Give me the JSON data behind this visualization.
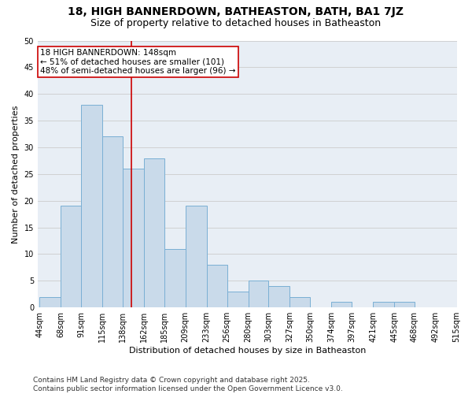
{
  "title1": "18, HIGH BANNERDOWN, BATHEASTON, BATH, BA1 7JZ",
  "title2": "Size of property relative to detached houses in Batheaston",
  "xlabel": "Distribution of detached houses by size in Batheaston",
  "ylabel": "Number of detached properties",
  "bar_values": [
    2,
    19,
    38,
    32,
    26,
    28,
    11,
    19,
    8,
    3,
    5,
    4,
    2,
    0,
    1,
    0,
    1,
    1,
    0,
    0
  ],
  "bin_edges": [
    44,
    68,
    91,
    115,
    138,
    162,
    185,
    209,
    233,
    256,
    280,
    303,
    327,
    350,
    374,
    397,
    421,
    445,
    468,
    492,
    515
  ],
  "xtick_labels": [
    "44sqm",
    "68sqm",
    "91sqm",
    "115sqm",
    "138sqm",
    "162sqm",
    "185sqm",
    "209sqm",
    "233sqm",
    "256sqm",
    "280sqm",
    "303sqm",
    "327sqm",
    "350sqm",
    "374sqm",
    "397sqm",
    "421sqm",
    "445sqm",
    "468sqm",
    "492sqm",
    "515sqm"
  ],
  "bar_color": "#c9daea",
  "bar_edge_color": "#7aafd4",
  "property_line_x": 148,
  "property_line_color": "#cc0000",
  "annotation_text": "18 HIGH BANNERDOWN: 148sqm\n← 51% of detached houses are smaller (101)\n48% of semi-detached houses are larger (96) →",
  "annotation_box_facecolor": "#ffffff",
  "annotation_box_edgecolor": "#cc0000",
  "ylim": [
    0,
    50
  ],
  "yticks": [
    0,
    5,
    10,
    15,
    20,
    25,
    30,
    35,
    40,
    45,
    50
  ],
  "grid_color": "#cccccc",
  "plot_bg_color": "#e8eef5",
  "footer_text": "Contains HM Land Registry data © Crown copyright and database right 2025.\nContains public sector information licensed under the Open Government Licence v3.0.",
  "title1_fontsize": 10,
  "title2_fontsize": 9,
  "xlabel_fontsize": 8,
  "ylabel_fontsize": 8,
  "tick_fontsize": 7,
  "annotation_fontsize": 7.5,
  "footer_fontsize": 6.5
}
